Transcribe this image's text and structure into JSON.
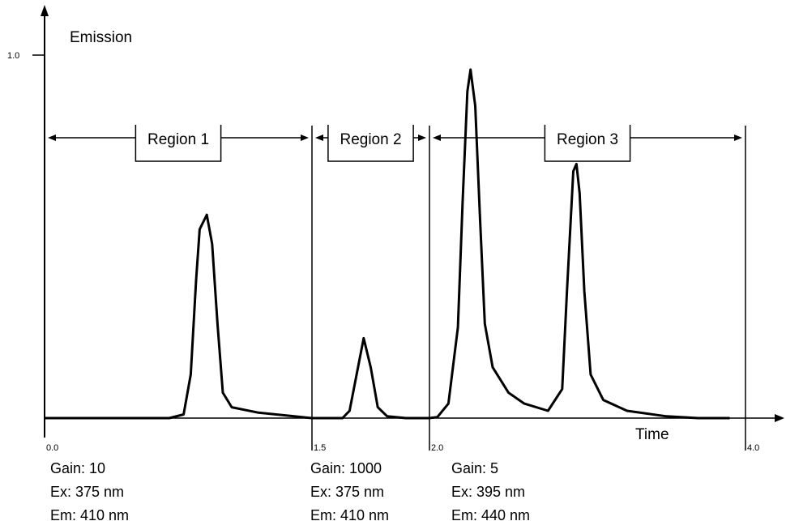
{
  "chart_data": {
    "type": "line",
    "ylabel": "Emission",
    "xlabel": "Time",
    "y_top_tick": "1.0",
    "x_ticks": [
      "0.0",
      "1.5",
      "2.0",
      "4.0"
    ],
    "x_tick_values": [
      0.0,
      1.5,
      2.0,
      4.0
    ],
    "ylim": [
      0,
      1.0
    ],
    "xlim": [
      0,
      4.0
    ],
    "series": [
      {
        "points": [
          [
            0.0,
            0.0
          ],
          [
            0.7,
            0.0
          ],
          [
            0.78,
            0.01
          ],
          [
            0.82,
            0.12
          ],
          [
            0.85,
            0.38
          ],
          [
            0.87,
            0.52
          ],
          [
            0.91,
            0.56
          ],
          [
            0.94,
            0.48
          ],
          [
            0.97,
            0.26
          ],
          [
            1.0,
            0.07
          ],
          [
            1.05,
            0.03
          ],
          [
            1.2,
            0.015
          ],
          [
            1.4,
            0.005
          ],
          [
            1.5,
            0.0
          ],
          [
            1.63,
            0.0
          ],
          [
            1.66,
            0.02
          ],
          [
            1.69,
            0.12
          ],
          [
            1.72,
            0.22
          ],
          [
            1.75,
            0.14
          ],
          [
            1.78,
            0.03
          ],
          [
            1.82,
            0.005
          ],
          [
            1.9,
            0.0
          ],
          [
            2.0,
            0.0
          ],
          [
            2.05,
            0.003
          ],
          [
            2.12,
            0.04
          ],
          [
            2.18,
            0.25
          ],
          [
            2.21,
            0.6
          ],
          [
            2.24,
            0.9
          ],
          [
            2.26,
            0.96
          ],
          [
            2.29,
            0.86
          ],
          [
            2.32,
            0.55
          ],
          [
            2.35,
            0.26
          ],
          [
            2.4,
            0.14
          ],
          [
            2.5,
            0.07
          ],
          [
            2.6,
            0.04
          ],
          [
            2.75,
            0.02
          ],
          [
            2.84,
            0.08
          ],
          [
            2.87,
            0.35
          ],
          [
            2.91,
            0.68
          ],
          [
            2.93,
            0.7
          ],
          [
            2.95,
            0.62
          ],
          [
            2.98,
            0.35
          ],
          [
            3.02,
            0.12
          ],
          [
            3.1,
            0.05
          ],
          [
            3.25,
            0.02
          ],
          [
            3.5,
            0.005
          ],
          [
            3.7,
            0.0
          ],
          [
            3.9,
            0.0
          ]
        ]
      }
    ],
    "regions": [
      {
        "label": "Region 1",
        "start": 0.0,
        "end": 1.5
      },
      {
        "label": "Region 2",
        "start": 1.5,
        "end": 2.0
      },
      {
        "label": "Region 3",
        "start": 2.0,
        "end": 4.0
      }
    ],
    "settings": [
      {
        "gain": "Gain: 10",
        "ex": "Ex: 375 nm",
        "em": "Em: 410 nm",
        "at": 0.0
      },
      {
        "gain": "Gain: 1000",
        "ex": "Ex: 375 nm",
        "em": "Em: 410 nm",
        "at": 1.5
      },
      {
        "gain": "Gain: 5",
        "ex": "Ex: 395 nm",
        "em": "Em: 440 nm",
        "at": 2.0
      }
    ],
    "grid": false,
    "legend": "none"
  }
}
